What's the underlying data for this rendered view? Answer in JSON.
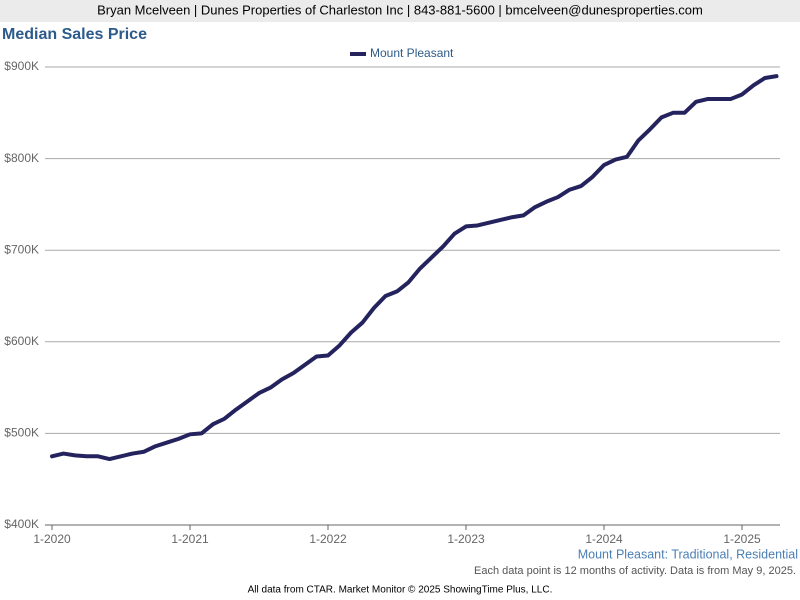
{
  "header": {
    "contact": "Bryan Mcelveen | Dunes Properties of Charleston Inc | 843-881-5600 | bmcelveen@dunesproperties.com"
  },
  "chart_data": {
    "type": "line",
    "title": "Median Sales Price",
    "categories": [
      "1-2020",
      null,
      null,
      null,
      null,
      null,
      null,
      null,
      null,
      null,
      null,
      null,
      "1-2021",
      null,
      null,
      null,
      null,
      null,
      null,
      null,
      null,
      null,
      null,
      null,
      "1-2022",
      null,
      null,
      null,
      null,
      null,
      null,
      null,
      null,
      null,
      null,
      null,
      "1-2023",
      null,
      null,
      null,
      null,
      null,
      null,
      null,
      null,
      null,
      null,
      null,
      "1-2024",
      null,
      null,
      null,
      null,
      null,
      null,
      null,
      null,
      null,
      null,
      null,
      "1-2025",
      null,
      null,
      null
    ],
    "series": [
      {
        "name": "Mount Pleasant",
        "color": "#24235e",
        "values": [
          475000,
          478000,
          476000,
          475000,
          475000,
          472000,
          475000,
          478000,
          480000,
          486000,
          490000,
          494000,
          499000,
          500000,
          510000,
          516000,
          526000,
          535000,
          544000,
          550000,
          559000,
          566000,
          575000,
          584000,
          585000,
          596000,
          610000,
          621000,
          637000,
          650000,
          655000,
          665000,
          680000,
          692000,
          704000,
          718000,
          726000,
          727000,
          730000,
          733000,
          736000,
          738000,
          747000,
          753000,
          758000,
          766000,
          770000,
          780000,
          793000,
          799000,
          802000,
          820000,
          832000,
          845000,
          850000,
          850000,
          862000,
          865000,
          865000,
          865000,
          870000,
          880000,
          888000,
          890000
        ]
      }
    ],
    "ylim": [
      400000,
      900000
    ],
    "yticks": [
      {
        "value": 400000,
        "label": "$400K"
      },
      {
        "value": 500000,
        "label": "$500K"
      },
      {
        "value": 600000,
        "label": "$600K"
      },
      {
        "value": 700000,
        "label": "$700K"
      },
      {
        "value": 800000,
        "label": "$800K"
      },
      {
        "value": 900000,
        "label": "$900K"
      }
    ],
    "grid": true,
    "subtitle": "Mount Pleasant: Traditional, Residential",
    "note": "Each data point is 12 months of activity. Data is from May 9, 2025."
  },
  "footer": {
    "text": "All data from CTAR. Market Monitor © 2025 ShowingTime Plus, LLC."
  }
}
